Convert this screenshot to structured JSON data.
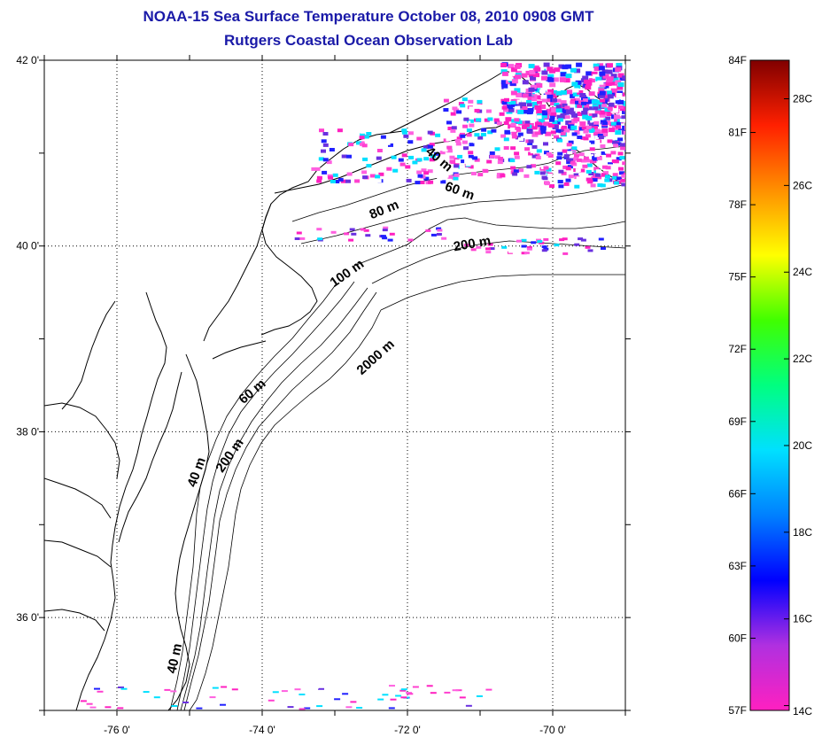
{
  "header": {
    "title": "NOAA-15 Sea Surface Temperature October 08, 2010 0908 GMT",
    "subtitle": "Rutgers Coastal Ocean Observation Lab"
  },
  "map": {
    "lon_range": [
      -77,
      -69
    ],
    "lat_range": [
      35,
      42
    ],
    "lon_ticks": [
      {
        "value": -76,
        "label": "-76 0'"
      },
      {
        "value": -74,
        "label": "-74 0'"
      },
      {
        "value": -72,
        "label": "-72 0'"
      },
      {
        "value": -70,
        "label": "-70 0'"
      }
    ],
    "lat_ticks": [
      {
        "value": 42,
        "label": "42 0'"
      },
      {
        "value": 40,
        "label": "40 0'"
      },
      {
        "value": 38,
        "label": "38 0'"
      },
      {
        "value": 36,
        "label": "36 0'"
      }
    ],
    "grid": "dotted",
    "contour_labels": [
      {
        "text": "40 m",
        "lon": -71.6,
        "lat": 40.9,
        "angle": 40
      },
      {
        "text": "60 m",
        "lon": -71.3,
        "lat": 40.55,
        "angle": 20
      },
      {
        "text": "80 m",
        "lon": -72.3,
        "lat": 40.35,
        "angle": -22
      },
      {
        "text": "200 m",
        "lon": -71.1,
        "lat": 39.98,
        "angle": -10
      },
      {
        "text": "100 m",
        "lon": -72.8,
        "lat": 39.67,
        "angle": -35
      },
      {
        "text": "2000 m",
        "lon": -72.4,
        "lat": 38.77,
        "angle": -42
      },
      {
        "text": "60 m",
        "lon": -74.1,
        "lat": 38.4,
        "angle": -40
      },
      {
        "text": "200 m",
        "lon": -74.4,
        "lat": 37.72,
        "angle": -55
      },
      {
        "text": "40 m",
        "lon": -74.85,
        "lat": 37.55,
        "angle": -70
      },
      {
        "text": "40 m",
        "lon": -75.15,
        "lat": 35.55,
        "angle": -78
      }
    ]
  },
  "colorbar": {
    "f_labels": [
      "84F",
      "81F",
      "78F",
      "75F",
      "72F",
      "69F",
      "66F",
      "63F",
      "60F",
      "57F"
    ],
    "c_labels": [
      "28C",
      "26C",
      "24C",
      "22C",
      "20C",
      "18C",
      "16C",
      "14C"
    ],
    "stops": [
      "#ff20c0",
      "#b030e0",
      "#0000ff",
      "#0080ff",
      "#00e0ff",
      "#00ff80",
      "#40ff00",
      "#ffff00",
      "#ff9000",
      "#ff2000",
      "#800000"
    ]
  }
}
